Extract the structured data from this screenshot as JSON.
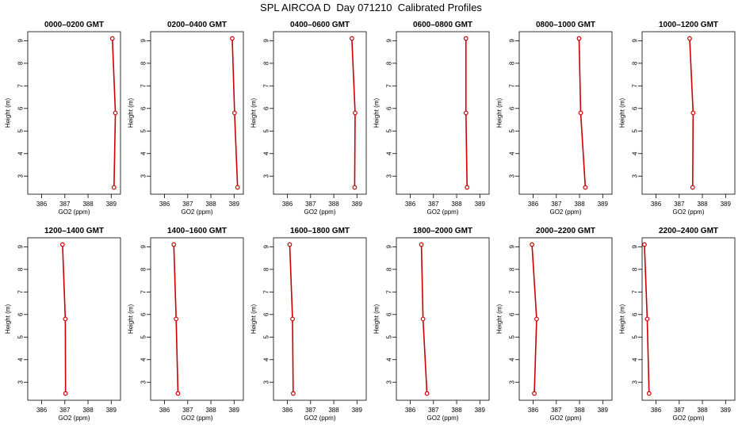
{
  "page": {
    "title": "SPL AIRCOA D  Day 071210  Calibrated Profiles"
  },
  "style": {
    "line_color": "#cc0000",
    "marker_color": "#cc0000",
    "axis_color": "#000000"
  },
  "chart_data": [
    {
      "type": "line",
      "title": "0000–0200 GMT",
      "xlabel": "GO2 (ppm)",
      "ylabel": "Height (m)",
      "xlim": [
        385.4,
        389.4
      ],
      "ylim": [
        2.2,
        9.4
      ],
      "xticks": [
        386,
        387,
        388,
        389
      ],
      "yticks": [
        3,
        4,
        5,
        6,
        7,
        8,
        9
      ],
      "x": [
        389.05,
        389.18,
        389.12
      ],
      "y": [
        9.1,
        5.8,
        2.5
      ]
    },
    {
      "type": "line",
      "title": "0200–0400 GMT",
      "xlabel": "GO2 (ppm)",
      "ylabel": "Height (m)",
      "xlim": [
        385.4,
        389.4
      ],
      "ylim": [
        2.2,
        9.4
      ],
      "xticks": [
        386,
        387,
        388,
        389
      ],
      "yticks": [
        3,
        4,
        5,
        6,
        7,
        8,
        9
      ],
      "x": [
        388.92,
        389.02,
        389.15
      ],
      "y": [
        9.1,
        5.8,
        2.5
      ]
    },
    {
      "type": "line",
      "title": "0400–0600 GMT",
      "xlabel": "GO2 (ppm)",
      "ylabel": "Height (m)",
      "xlim": [
        385.4,
        389.4
      ],
      "ylim": [
        2.2,
        9.4
      ],
      "xticks": [
        386,
        387,
        388,
        389
      ],
      "yticks": [
        3,
        4,
        5,
        6,
        7,
        8,
        9
      ],
      "x": [
        388.78,
        388.92,
        388.9
      ],
      "y": [
        9.1,
        5.8,
        2.5
      ]
    },
    {
      "type": "line",
      "title": "0600–0800 GMT",
      "xlabel": "GO2 (ppm)",
      "ylabel": "Height (m)",
      "xlim": [
        385.4,
        389.4
      ],
      "ylim": [
        2.2,
        9.4
      ],
      "xticks": [
        386,
        387,
        388,
        389
      ],
      "yticks": [
        3,
        4,
        5,
        6,
        7,
        8,
        9
      ],
      "x": [
        388.4,
        388.4,
        388.45
      ],
      "y": [
        9.1,
        5.8,
        2.5
      ]
    },
    {
      "type": "line",
      "title": "0800–1000 GMT",
      "xlabel": "GO2 (ppm)",
      "ylabel": "Height (m)",
      "xlim": [
        385.4,
        389.4
      ],
      "ylim": [
        2.2,
        9.4
      ],
      "xticks": [
        386,
        387,
        388,
        389
      ],
      "yticks": [
        3,
        4,
        5,
        6,
        7,
        8,
        9
      ],
      "x": [
        387.98,
        388.05,
        388.25
      ],
      "y": [
        9.1,
        5.8,
        2.5
      ]
    },
    {
      "type": "line",
      "title": "1000–1200 GMT",
      "xlabel": "GO2 (ppm)",
      "ylabel": "Height (m)",
      "xlim": [
        385.4,
        389.4
      ],
      "ylim": [
        2.2,
        9.4
      ],
      "xticks": [
        386,
        387,
        388,
        389
      ],
      "yticks": [
        3,
        4,
        5,
        6,
        7,
        8,
        9
      ],
      "x": [
        387.45,
        387.6,
        387.58
      ],
      "y": [
        9.1,
        5.8,
        2.5
      ]
    },
    {
      "type": "line",
      "title": "1200–1400 GMT",
      "xlabel": "GO2 (ppm)",
      "ylabel": "Height (m)",
      "xlim": [
        385.4,
        389.4
      ],
      "ylim": [
        2.2,
        9.4
      ],
      "xticks": [
        386,
        387,
        388,
        389
      ],
      "yticks": [
        3,
        4,
        5,
        6,
        7,
        8,
        9
      ],
      "x": [
        386.9,
        387.02,
        387.03
      ],
      "y": [
        9.1,
        5.8,
        2.5
      ]
    },
    {
      "type": "line",
      "title": "1400–1600 GMT",
      "xlabel": "GO2 (ppm)",
      "ylabel": "Height (m)",
      "xlim": [
        385.4,
        389.4
      ],
      "ylim": [
        2.2,
        9.4
      ],
      "xticks": [
        386,
        387,
        388,
        389
      ],
      "yticks": [
        3,
        4,
        5,
        6,
        7,
        8,
        9
      ],
      "x": [
        386.4,
        386.5,
        386.58
      ],
      "y": [
        9.1,
        5.8,
        2.5
      ]
    },
    {
      "type": "line",
      "title": "1600–1800 GMT",
      "xlabel": "GO2 (ppm)",
      "ylabel": "Height (m)",
      "xlim": [
        385.4,
        389.4
      ],
      "ylim": [
        2.2,
        9.4
      ],
      "xticks": [
        386,
        387,
        388,
        389
      ],
      "yticks": [
        3,
        4,
        5,
        6,
        7,
        8,
        9
      ],
      "x": [
        386.1,
        386.22,
        386.25
      ],
      "y": [
        9.1,
        5.8,
        2.5
      ]
    },
    {
      "type": "line",
      "title": "1800–2000 GMT",
      "xlabel": "GO2 (ppm)",
      "ylabel": "Height (m)",
      "xlim": [
        385.4,
        389.4
      ],
      "ylim": [
        2.2,
        9.4
      ],
      "xticks": [
        386,
        387,
        388,
        389
      ],
      "yticks": [
        3,
        4,
        5,
        6,
        7,
        8,
        9
      ],
      "x": [
        386.48,
        386.55,
        386.72
      ],
      "y": [
        9.1,
        5.8,
        2.5
      ]
    },
    {
      "type": "line",
      "title": "2000–2200 GMT",
      "xlabel": "GO2 (ppm)",
      "ylabel": "Height (m)",
      "xlim": [
        385.4,
        389.4
      ],
      "ylim": [
        2.2,
        9.4
      ],
      "xticks": [
        386,
        387,
        388,
        389
      ],
      "yticks": [
        3,
        4,
        5,
        6,
        7,
        8,
        9
      ],
      "x": [
        385.95,
        386.15,
        386.05
      ],
      "y": [
        9.1,
        5.8,
        2.5
      ]
    },
    {
      "type": "line",
      "title": "2200–2400 GMT",
      "xlabel": "GO2 (ppm)",
      "ylabel": "Height (m)",
      "xlim": [
        385.4,
        389.4
      ],
      "ylim": [
        2.2,
        9.4
      ],
      "xticks": [
        386,
        387,
        388,
        389
      ],
      "yticks": [
        3,
        4,
        5,
        6,
        7,
        8,
        9
      ],
      "x": [
        385.5,
        385.62,
        385.7
      ],
      "y": [
        9.1,
        5.8,
        2.5
      ]
    }
  ]
}
